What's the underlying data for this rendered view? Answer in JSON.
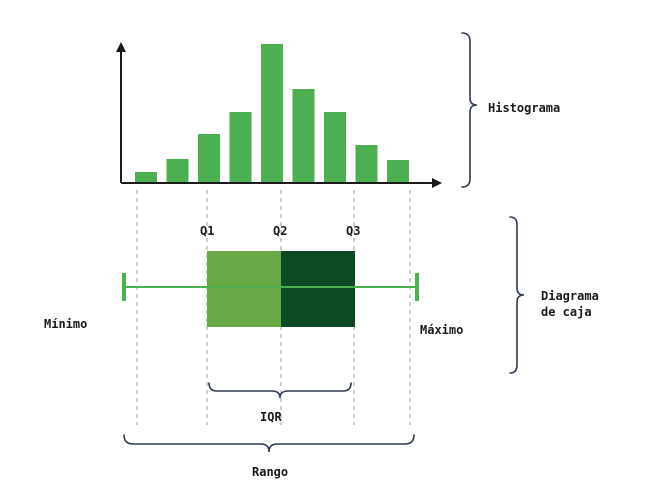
{
  "histogram": {
    "label": "Histograma",
    "bar_heights": [
      10,
      23,
      48,
      70,
      138,
      93,
      70,
      37,
      22
    ],
    "bar_color": "#4bb04f"
  },
  "boxplot": {
    "label_line1": "Diagrama",
    "label_line2": "de caja",
    "q1_label": "Q1",
    "q2_label": "Q2",
    "q3_label": "Q3",
    "min_label": "Mínimo",
    "max_label": "Máximo",
    "iqr_label": "IQR",
    "range_label": "Rango",
    "box_left_color": "#6aaa46",
    "box_right_color": "#0b4a22",
    "whisker_color": "#4bb04f"
  },
  "colors": {
    "axis": "#1a1a1a",
    "brace": "#2f3b52",
    "guide": "#999999"
  }
}
